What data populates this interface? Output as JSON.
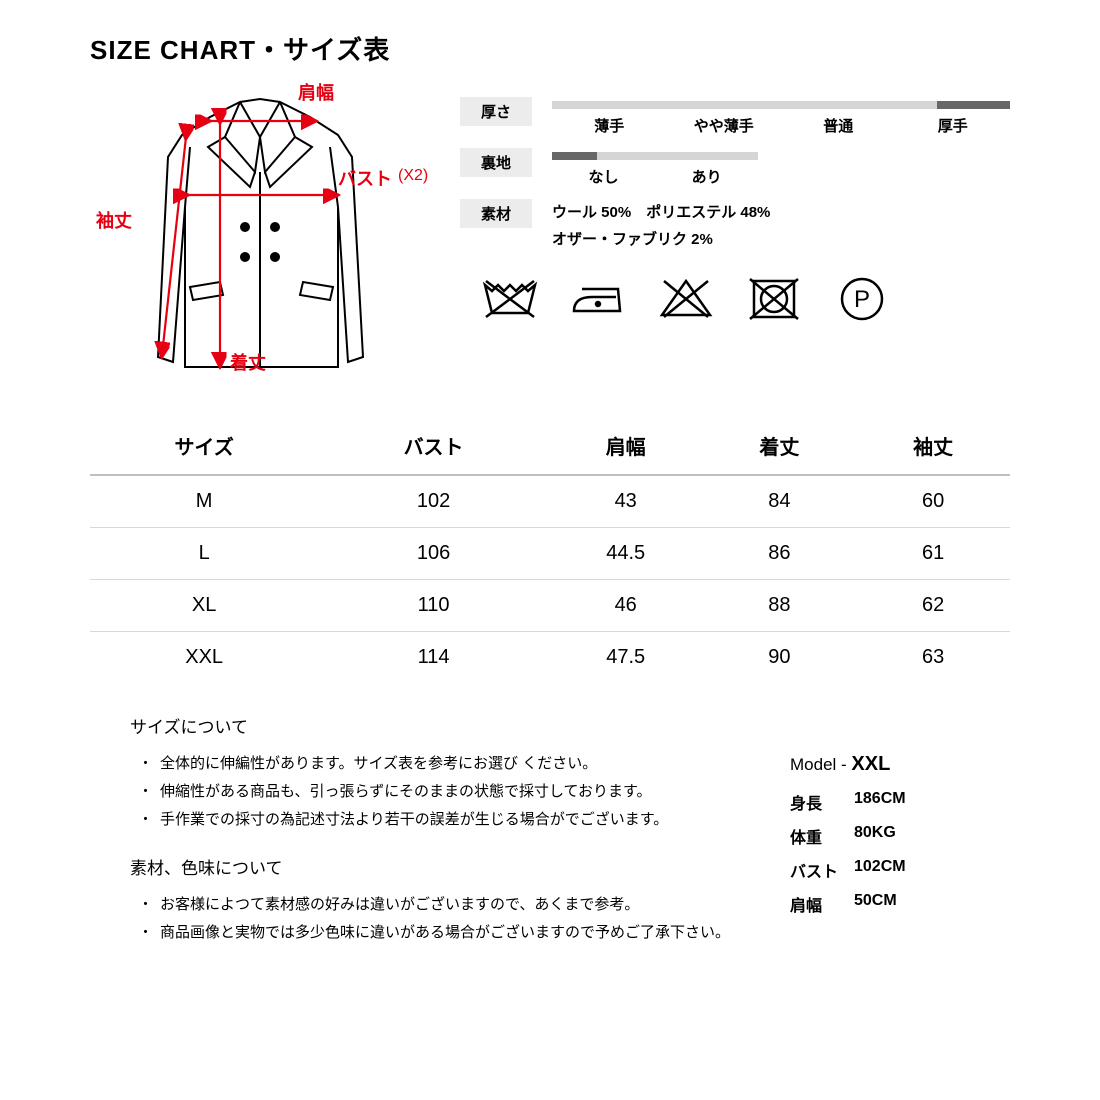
{
  "title": "SIZE CHART・サイズ表",
  "diagram": {
    "labels": {
      "shoulder": "肩幅",
      "bust": "バスト",
      "bust_x2": "(X2)",
      "sleeve": "袖丈",
      "length": "着丈"
    },
    "line_color": "#000000",
    "arrow_color": "#e60012",
    "label_color": "#e60012"
  },
  "specs": {
    "thickness": {
      "label": "厚さ",
      "options": [
        "薄手",
        "やや薄手",
        "普通",
        "厚手"
      ],
      "fill_start_pct": 84,
      "fill_width_pct": 16,
      "bar_bg": "#d5d5d5",
      "bar_fill": "#676767"
    },
    "lining": {
      "label": "裏地",
      "options": [
        "なし",
        "あり"
      ],
      "fill_start_pct": 0,
      "fill_width_pct": 22,
      "bar_bg": "#d5d5d5",
      "bar_fill": "#676767"
    },
    "material": {
      "label": "素材",
      "line1": "ウール 50%　ポリエステル 48%",
      "line2": "オザー・ファブリク  2%"
    }
  },
  "care_icons": [
    "no-wash",
    "iron",
    "no-bleach",
    "no-tumble",
    "dryclean-p"
  ],
  "table": {
    "columns": [
      "サイズ",
      "バスト",
      "肩幅",
      "着丈",
      "袖丈"
    ],
    "rows": [
      [
        "M",
        "102",
        "43",
        "84",
        "60"
      ],
      [
        "L",
        "106",
        "44.5",
        "86",
        "61"
      ],
      [
        "XL",
        "110",
        "46",
        "88",
        "62"
      ],
      [
        "XXL",
        "114",
        "47.5",
        "90",
        "63"
      ]
    ]
  },
  "notes": {
    "size_heading": "サイズについて",
    "size_items": [
      "全体的に伸編性があります。サイズ表を参考にお選び ください。",
      "伸縮性がある商品も、引っ張らずにそのままの状態で採寸しております。",
      "手作業での採寸の為記述寸法より若干の誤差が生じる場合がでございます。"
    ],
    "material_heading": "素材、色味について",
    "material_items": [
      "お客様によつて素材感の好みは違いがございますので、あくまで参考。",
      "商品画像と実物では多少色味に違いがある場合がございますので予めご了承下さい。"
    ]
  },
  "model": {
    "title_prefix": "Model - ",
    "size": "XXL",
    "rows": [
      {
        "k": "身長",
        "v": "186CM"
      },
      {
        "k": "体重",
        "v": "80KG"
      },
      {
        "k": "バスト",
        "v": "102CM"
      },
      {
        "k": "肩幅",
        "v": "50CM"
      }
    ]
  }
}
